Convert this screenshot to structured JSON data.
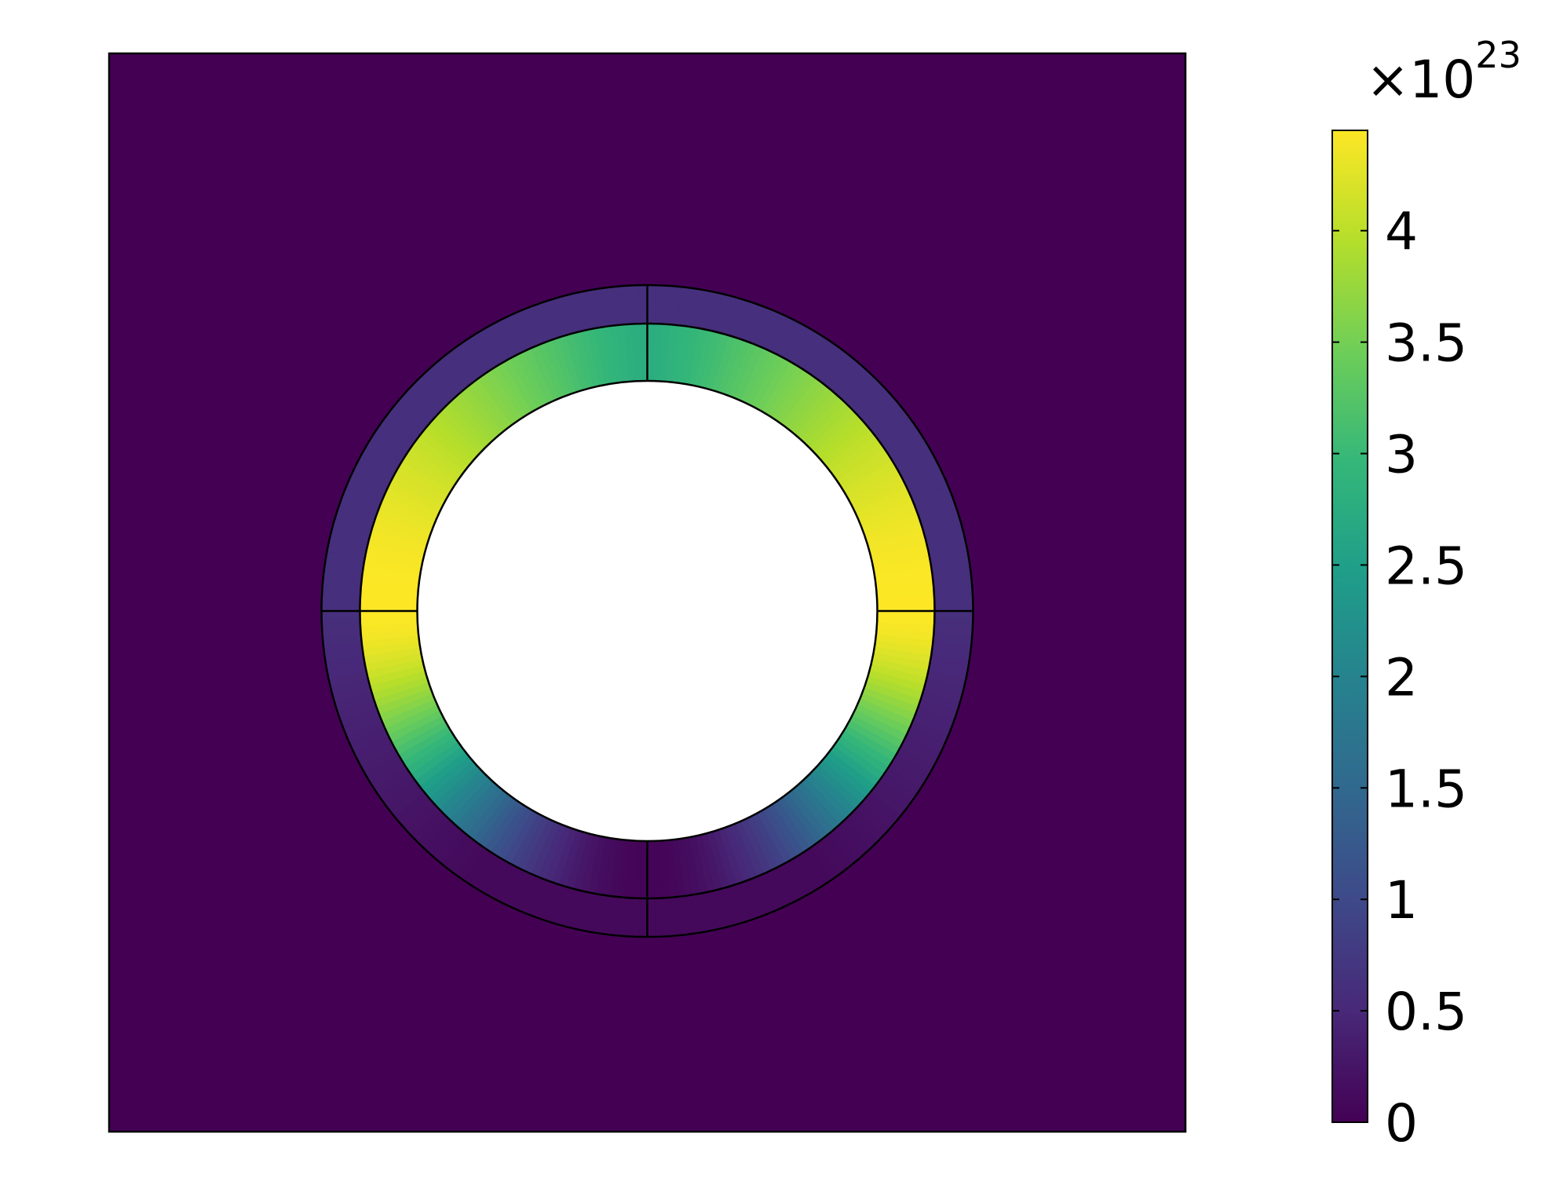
{
  "chart_data": {
    "type": "heatmap",
    "title": "",
    "description_free": true,
    "colormap": "viridis",
    "colormap_stops": [
      "#440154",
      "#482878",
      "#3e4989",
      "#31688e",
      "#26828e",
      "#1f9e89",
      "#35b779",
      "#6ece58",
      "#b5de2b",
      "#fde725"
    ],
    "colorbar": {
      "min": 0,
      "max": 4.45,
      "multiplier_base": "×10",
      "multiplier_exponent": "23",
      "ticks": [
        {
          "value": 0,
          "label": "0"
        },
        {
          "value": 0.5,
          "label": "0.5"
        },
        {
          "value": 1,
          "label": "1"
        },
        {
          "value": 1.5,
          "label": "1.5"
        },
        {
          "value": 2,
          "label": "2"
        },
        {
          "value": 2.5,
          "label": "2.5"
        },
        {
          "value": 3,
          "label": "3"
        },
        {
          "value": 3.5,
          "label": "3.5"
        },
        {
          "value": 4,
          "label": "4"
        }
      ]
    },
    "field": {
      "background_value": 0,
      "outer_ring_value_top": 0.6,
      "outer_ring_value_bottom": 0.1,
      "inner_ring_value_top": 2.75,
      "inner_ring_value_sides": 4.45,
      "inner_ring_value_bottom": 0.05
    },
    "domain_geometry": {
      "square_halfwidth": 1.0,
      "hole_radius": 0.43,
      "inner_ring_outer_radius": 0.535,
      "outer_ring_outer_radius": 0.607
    }
  }
}
